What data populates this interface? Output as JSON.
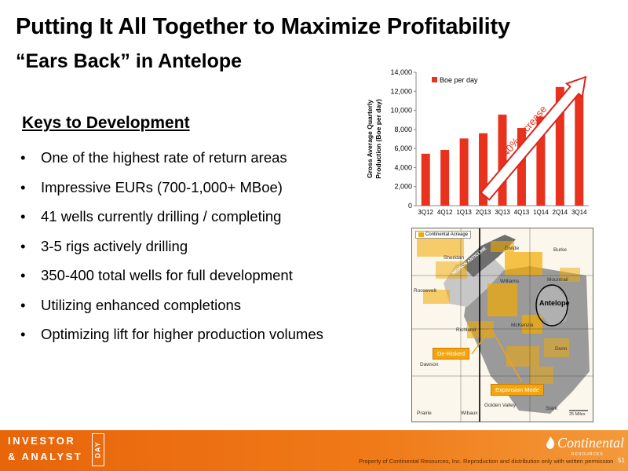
{
  "title": "Putting It All Together to Maximize Profitability",
  "subtitle": "“Ears Back” in Antelope",
  "keys_heading": "Keys to Development",
  "bullets": [
    "One of the highest rate of return areas",
    "Impressive EURs (700-1,000+ MBoe)",
    "41 wells currently drilling / completing",
    "3-5 rigs actively drilling",
    "350-400 total wells for full development",
    "Utilizing enhanced completions",
    "Optimizing lift for higher production volumes"
  ],
  "bullet_symbol": "•",
  "chart_data": {
    "type": "bar",
    "categories": [
      "3Q12",
      "4Q12",
      "1Q13",
      "2Q13",
      "3Q13",
      "4Q13",
      "1Q14",
      "2Q14",
      "3Q14"
    ],
    "series": [
      {
        "name": "Boe per day",
        "values": [
          5450,
          5850,
          7050,
          7600,
          9550,
          8150,
          9350,
          12450,
          12950
        ]
      }
    ],
    "ylabel": "Gross Average Quarterly Production (Boe per day)",
    "ylim": [
      0,
      14000
    ],
    "yticks": [
      0,
      2000,
      4000,
      6000,
      8000,
      10000,
      12000,
      14000
    ],
    "ytick_labels": [
      "0",
      "2,000",
      "4,000",
      "6,000",
      "8,000",
      "10,000",
      "12,000",
      "14,000"
    ],
    "annotation": "140% Increase",
    "legend_position": "top-left",
    "grid": false,
    "bar_color": "#e8321e"
  },
  "map": {
    "legend": "Continental Acreage",
    "region_labels": [
      "Sheridan",
      "Divide",
      "Burke",
      "Roosevelt",
      "Williams",
      "Mountrail",
      "Richland",
      "McKenzie",
      "Dunn",
      "Dawson",
      "Golden Valley",
      "Prairie",
      "Wibaux",
      "Stark"
    ],
    "highlight_label": "Antelope",
    "trend_label": "NESSON ANTICLINE",
    "callout_derisked": "De-Risked",
    "callout_expansion": "Expansion Mode",
    "scale": "25 Miles"
  },
  "footer": {
    "investor_line1": "INVESTOR",
    "investor_line2": "& ANALYST",
    "day": "DAY",
    "company": "Continental",
    "company_sub": "RESOURCES",
    "notice": "Property of Continental Resources, Inc. Reproduction and distribution only with written permission",
    "page": "51"
  }
}
